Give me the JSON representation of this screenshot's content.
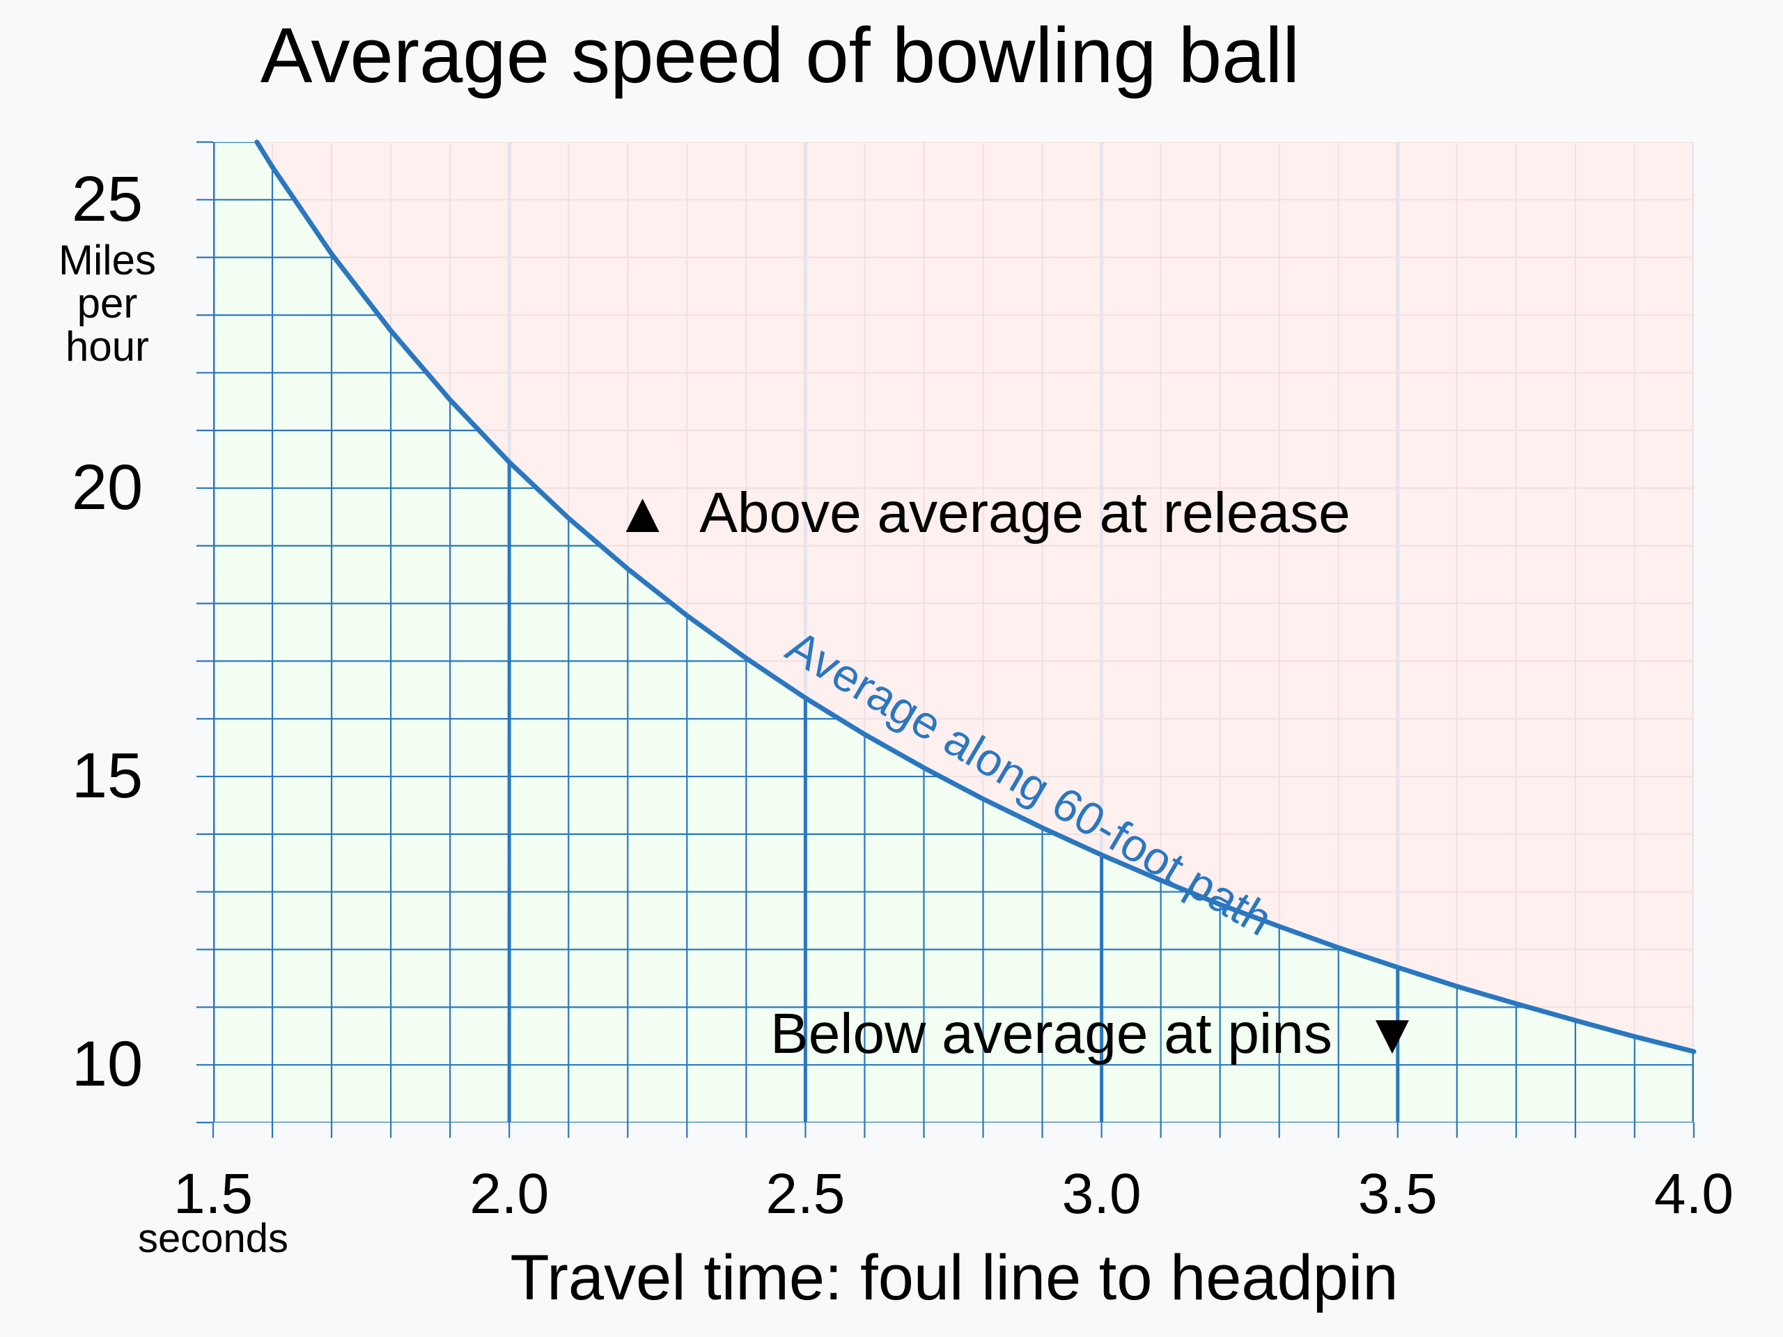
{
  "chart_data": {
    "type": "line",
    "title": "Average speed of bowling ball",
    "xlabel": "Travel time: foul line to headpin",
    "x_unit": "seconds",
    "ylabel": "Miles per hour",
    "ylabel_lines": [
      "Miles",
      "per",
      "hour"
    ],
    "xlim": [
      1.5,
      4.0
    ],
    "ylim": [
      9,
      26
    ],
    "x_ticks": [
      1.5,
      2.0,
      2.5,
      3.0,
      3.5,
      4.0
    ],
    "x_tick_labels": [
      "1.5",
      "2.0",
      "2.5",
      "3.0",
      "3.5",
      "4.0"
    ],
    "y_ticks": [
      10,
      15,
      20,
      25
    ],
    "y_tick_labels": [
      "10",
      "15",
      "20",
      "25"
    ],
    "grid": true,
    "series": [
      {
        "name": "Average along 60-foot path",
        "color": "#2a77c0",
        "x": [
          1.574,
          1.6,
          1.7,
          1.8,
          1.9,
          2.0,
          2.1,
          2.2,
          2.3,
          2.4,
          2.5,
          2.6,
          2.7,
          2.8,
          2.9,
          3.0,
          3.1,
          3.2,
          3.3,
          3.4,
          3.5,
          3.6,
          3.7,
          3.8,
          3.9,
          4.0
        ],
        "y": [
          26.0,
          25.57,
          24.06,
          22.73,
          21.53,
          20.45,
          19.48,
          18.6,
          17.79,
          17.05,
          16.36,
          15.73,
          15.15,
          14.61,
          14.11,
          13.64,
          13.2,
          12.78,
          12.4,
          12.03,
          11.69,
          11.36,
          11.06,
          10.77,
          10.49,
          10.23
        ]
      }
    ],
    "regions": {
      "above_color": "#fff0f0",
      "below_color": "#f2fff2"
    },
    "annotations": {
      "above": "▲  Above average at release",
      "below": "Below average at pins  ▼"
    },
    "colors": {
      "grid_below": "#2a77c0",
      "grid_above": "#f3dfe2",
      "text": "#000000"
    }
  }
}
